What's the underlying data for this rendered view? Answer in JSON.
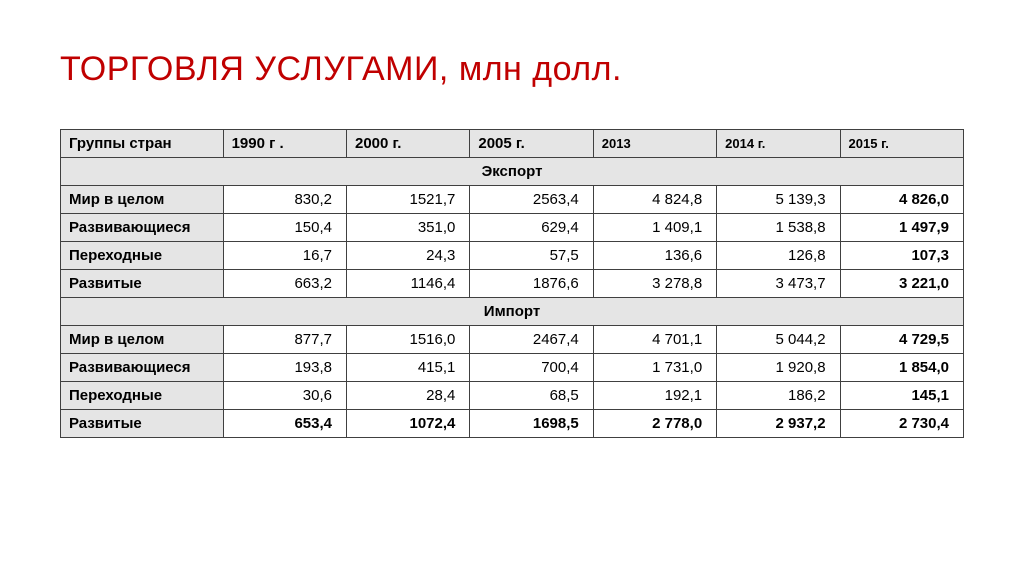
{
  "title": "ТОРГОВЛЯ УСЛУГАМИ, млн долл.",
  "table": {
    "header_label": "Группы стран",
    "years": [
      "1990 г .",
      "2000 г.",
      "2005 г.",
      "2013",
      "2014 г.",
      "2015 г."
    ],
    "year_small_font_from_index": 3,
    "sections": [
      {
        "title": "Экспорт",
        "rows": [
          {
            "label": "Мир в целом",
            "values": [
              "830,2",
              "1521,7",
              "2563,4",
              "4 824,8",
              "5 139,3",
              "4 826,0"
            ],
            "bold_last": true
          },
          {
            "label": "Развивающиеся",
            "values": [
              "150,4",
              "351,0",
              "629,4",
              "1 409,1",
              "1 538,8",
              "1 497,9"
            ],
            "bold_last": true
          },
          {
            "label": "Переходные",
            "values": [
              "16,7",
              "24,3",
              "57,5",
              "136,6",
              "126,8",
              "107,3"
            ],
            "bold_last": true
          },
          {
            "label": "Развитые",
            "values": [
              "663,2",
              "1146,4",
              "1876,6",
              "3 278,8",
              "3 473,7",
              "3 221,0"
            ],
            "bold_last": true
          }
        ]
      },
      {
        "title": "Импорт",
        "rows": [
          {
            "label": "Мир в целом",
            "values": [
              "877,7",
              "1516,0",
              "2467,4",
              "4 701,1",
              "5 044,2",
              "4 729,5"
            ],
            "bold_last": true
          },
          {
            "label": "Развивающиеся",
            "values": [
              "193,8",
              "415,1",
              "700,4",
              "1 731,0",
              "1 920,8",
              "1 854,0"
            ],
            "bold_last": true
          },
          {
            "label": "Переходные",
            "values": [
              "30,6",
              "28,4",
              "68,5",
              "192,1",
              "186,2",
              "145,1"
            ],
            "bold_last": true
          },
          {
            "label": "Развитые",
            "values": [
              "653,4",
              "1072,4",
              "1698,5",
              "2 778,0",
              "2 937,2",
              "2 730,4"
            ],
            "bold_all": true
          }
        ]
      }
    ],
    "colors": {
      "title": "#c00000",
      "header_bg": "#e5e5e5",
      "border": "#404040",
      "cell_bg": "#ffffff"
    },
    "font_sizes": {
      "title": 34,
      "body": 15,
      "small_header": 13
    }
  }
}
